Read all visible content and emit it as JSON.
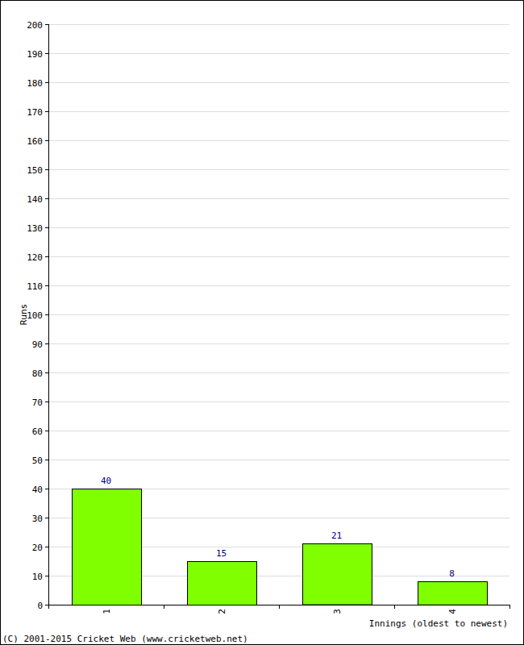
{
  "chart_data": {
    "type": "bar",
    "categories": [
      "1",
      "2",
      "3",
      "4"
    ],
    "values": [
      40,
      15,
      21,
      8
    ],
    "color": "#80ff00",
    "ylim": [
      0,
      200
    ],
    "yticks": [
      0,
      10,
      20,
      30,
      40,
      50,
      60,
      70,
      80,
      90,
      100,
      110,
      120,
      130,
      140,
      150,
      160,
      170,
      180,
      190,
      200
    ],
    "grid": true,
    "data_labels": true,
    "y_label": "Runs",
    "x_label": "Innings (oldest to newest)",
    "annotations": [
      "(C) 2001-2015 Cricket Web (www.cricketweb.net)"
    ]
  }
}
